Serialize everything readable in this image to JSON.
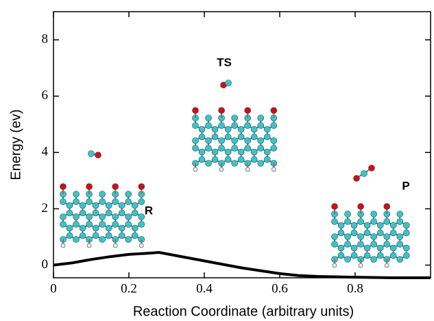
{
  "chart_data": {
    "type": "line",
    "x_label": "Reaction Coordinate (arbitrary units)",
    "y_label": "Energy (ev)",
    "annotations": [
      "R",
      "TS",
      "P"
    ],
    "x": [
      0,
      0.05,
      0.1,
      0.15,
      0.2,
      0.25,
      0.28,
      0.32,
      0.4,
      0.5,
      0.55,
      0.6,
      0.65,
      0.7,
      0.8,
      0.9,
      1.0
    ],
    "series": [
      {
        "color": "#000000",
        "values": [
          0,
          0.08,
          0.2,
          0.3,
          0.38,
          0.42,
          0.45,
          0.35,
          0.15,
          -0.1,
          -0.2,
          -0.3,
          -0.37,
          -0.4,
          -0.43,
          -0.45,
          -0.45
        ]
      }
    ],
    "xlim": [
      0,
      1.0
    ],
    "xticks": [
      0,
      0.2,
      0.4,
      0.6,
      0.8
    ],
    "ylim": [
      -0.45,
      9
    ],
    "yticks": [
      0,
      2,
      4,
      6,
      8
    ]
  }
}
